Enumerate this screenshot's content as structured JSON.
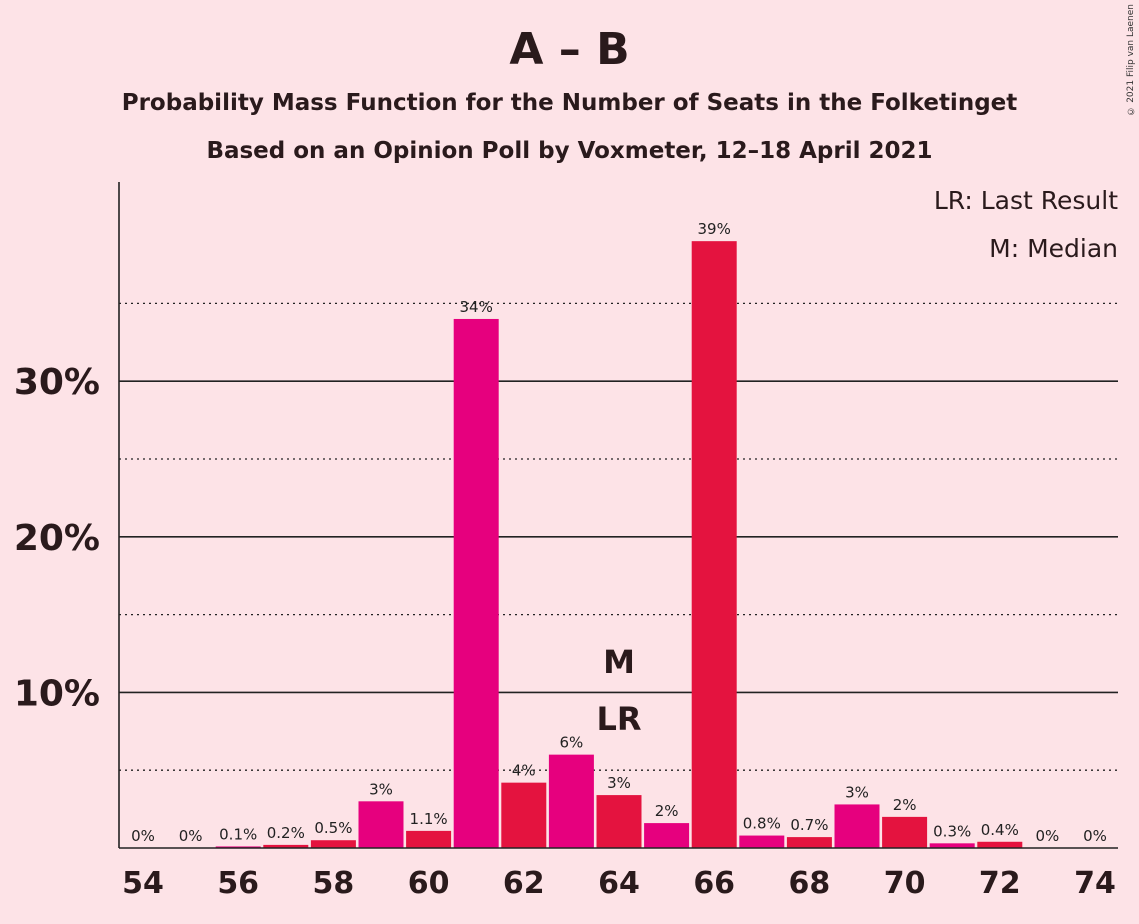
{
  "title": "A – B",
  "subtitle": "Probability Mass Function for the Number of Seats in the Folketinget",
  "subtitle2": "Based on an Opinion Poll by Voxmeter, 12–18 April 2021",
  "copyright": "© 2021 Filip van Laenen",
  "legend": {
    "lr": "LR: Last Result",
    "m": "M: Median"
  },
  "colors": {
    "background": "#FDE3E7",
    "magenta": "#E6007E",
    "red": "#E4133F",
    "text": "#2a1a1c"
  },
  "chart_data": {
    "type": "bar",
    "x": [
      54,
      55,
      56,
      57,
      58,
      59,
      60,
      61,
      62,
      63,
      64,
      65,
      66,
      67,
      68,
      69,
      70,
      71,
      72,
      73,
      74
    ],
    "values": [
      0,
      0,
      0.1,
      0.2,
      0.5,
      3,
      1.1,
      34,
      4.2,
      6,
      3.4,
      1.6,
      39,
      0.8,
      0.7,
      2.8,
      2,
      0.3,
      0.4,
      0,
      0
    ],
    "labels": [
      "0%",
      "0%",
      "0.1%",
      "0.2%",
      "0.5%",
      "3%",
      "1.1%",
      "34%",
      "4%",
      "6%",
      "3%",
      "2%",
      "39%",
      "0.8%",
      "0.7%",
      "3%",
      "2%",
      "0.3%",
      "0.4%",
      "0%",
      "0%"
    ],
    "bar_colors": [
      "#E6007E",
      "#E4133F",
      "#E6007E",
      "#E4133F",
      "#E4133F",
      "#E6007E",
      "#E4133F",
      "#E6007E",
      "#E4133F",
      "#E6007E",
      "#E4133F",
      "#E6007E",
      "#E4133F",
      "#E6007E",
      "#E4133F",
      "#E6007E",
      "#E4133F",
      "#E6007E",
      "#E4133F",
      "#E6007E",
      "#E4133F"
    ],
    "x_tick_labels": [
      "54",
      "56",
      "58",
      "60",
      "62",
      "64",
      "66",
      "68",
      "70",
      "72",
      "74"
    ],
    "x_ticks": [
      54,
      56,
      58,
      60,
      62,
      64,
      66,
      68,
      70,
      72,
      74
    ],
    "y_major_ticks": [
      10,
      20,
      30
    ],
    "y_tick_labels": [
      "10%",
      "20%",
      "30%"
    ],
    "y_minor_ticks": [
      5,
      15,
      25,
      35
    ],
    "ylim": [
      0,
      42.5
    ],
    "median_seat": 64,
    "last_result_seat": 64,
    "median_marker": "M",
    "last_result_marker": "LR",
    "legend_placement": "top-right"
  }
}
